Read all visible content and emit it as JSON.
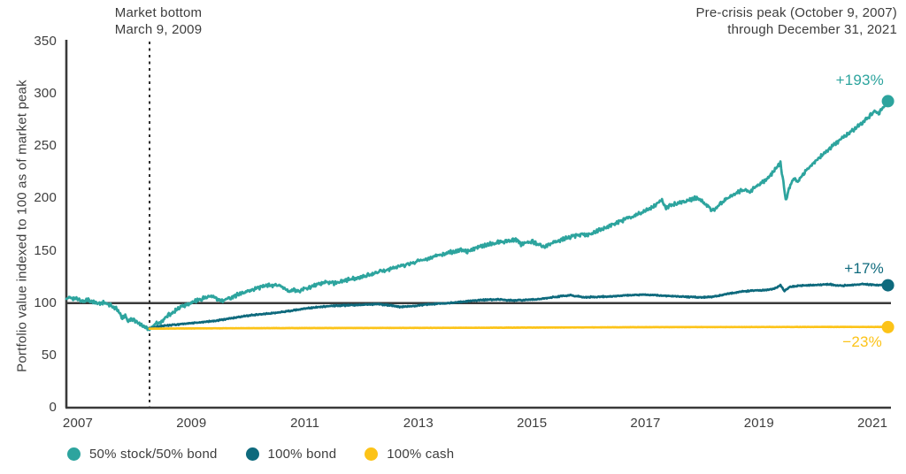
{
  "header": {
    "line1": "Pre-crisis peak (October 9, 2007)",
    "line2": "through December 31, 2021"
  },
  "annotation": {
    "line1": "Market bottom",
    "line2": "March 9, 2009",
    "marker_date_decimal": 2009.22
  },
  "axes": {
    "y_title": "Portfolio value indexed to 100 as of market peak",
    "y_ticks": [
      0,
      50,
      100,
      150,
      200,
      250,
      300,
      350
    ],
    "x_tick_labels": [
      "2007",
      "2009",
      "2011",
      "2013",
      "2015",
      "2017",
      "2019",
      "2021"
    ],
    "reference_line_value": 100
  },
  "legend": {
    "items": [
      {
        "label": "50% stock/50% bond",
        "color": "#2da49e"
      },
      {
        "label": "100% bond",
        "color": "#0e6a7d"
      },
      {
        "label": "100% cash",
        "color": "#fcc318"
      }
    ]
  },
  "colors": {
    "axis": "#3a3a3a",
    "text": "#3d3d3d",
    "reference_line": "#3a3a3a",
    "marker_line": "#2b2b2b"
  },
  "chart_data": {
    "type": "line",
    "title": "Pre-crisis peak (October 9, 2007) through December 31, 2021",
    "xlabel": "",
    "ylabel": "Portfolio value indexed to 100 as of market peak",
    "x_range_decimal_years": [
      2007.78,
      2022.0
    ],
    "ylim": [
      0,
      350
    ],
    "grid": false,
    "legend_position": "bottom",
    "annotations": [
      {
        "text": "Market bottom March 9, 2009",
        "x": 2009.22,
        "style": "dashed-vertical-line"
      },
      {
        "text": "Pre-crisis peak (October 9, 2007) through December 31, 2021",
        "position": "top-right"
      }
    ],
    "series": [
      {
        "name": "50% stock/50% bond",
        "color": "#2da49e",
        "end_label": "+193%",
        "end_value": 293,
        "jitter": 1.6,
        "points": [
          [
            2007.78,
            104
          ],
          [
            2007.84,
            105.5
          ],
          [
            2007.92,
            104.5
          ],
          [
            2008.0,
            103
          ],
          [
            2008.08,
            101.5
          ],
          [
            2008.16,
            103.5
          ],
          [
            2008.24,
            101
          ],
          [
            2008.33,
            99.5
          ],
          [
            2008.42,
            100.5
          ],
          [
            2008.5,
            98.5
          ],
          [
            2008.58,
            97
          ],
          [
            2008.64,
            95
          ],
          [
            2008.7,
            90
          ],
          [
            2008.75,
            85.5
          ],
          [
            2008.8,
            88
          ],
          [
            2008.85,
            82.5
          ],
          [
            2008.9,
            85.5
          ],
          [
            2008.96,
            83.5
          ],
          [
            2009.02,
            81
          ],
          [
            2009.08,
            79
          ],
          [
            2009.14,
            77
          ],
          [
            2009.22,
            75.5
          ],
          [
            2009.28,
            78
          ],
          [
            2009.33,
            81
          ],
          [
            2009.38,
            80
          ],
          [
            2009.45,
            84
          ],
          [
            2009.53,
            87.5
          ],
          [
            2009.6,
            90.5
          ],
          [
            2009.68,
            93.5
          ],
          [
            2009.76,
            96
          ],
          [
            2009.84,
            98
          ],
          [
            2009.92,
            99.5
          ],
          [
            2010.0,
            101.5
          ],
          [
            2010.1,
            103.5
          ],
          [
            2010.2,
            105.5
          ],
          [
            2010.3,
            106.5
          ],
          [
            2010.4,
            103.5
          ],
          [
            2010.5,
            102.5
          ],
          [
            2010.6,
            105
          ],
          [
            2010.7,
            107
          ],
          [
            2010.8,
            109
          ],
          [
            2010.9,
            111
          ],
          [
            2011.0,
            113
          ],
          [
            2011.1,
            114.5
          ],
          [
            2011.2,
            116
          ],
          [
            2011.3,
            117
          ],
          [
            2011.4,
            117.5
          ],
          [
            2011.5,
            116
          ],
          [
            2011.58,
            113
          ],
          [
            2011.65,
            110.5
          ],
          [
            2011.72,
            113
          ],
          [
            2011.8,
            111
          ],
          [
            2011.9,
            113.5
          ],
          [
            2012.0,
            115.5
          ],
          [
            2012.1,
            117.5
          ],
          [
            2012.2,
            119
          ],
          [
            2012.3,
            120
          ],
          [
            2012.4,
            119
          ],
          [
            2012.5,
            120.5
          ],
          [
            2012.6,
            121.5
          ],
          [
            2012.72,
            123
          ],
          [
            2012.85,
            124
          ],
          [
            2013.0,
            126.5
          ],
          [
            2013.15,
            129
          ],
          [
            2013.3,
            131.5
          ],
          [
            2013.45,
            133.5
          ],
          [
            2013.6,
            136
          ],
          [
            2013.75,
            138
          ],
          [
            2013.9,
            140.5
          ],
          [
            2014.05,
            143
          ],
          [
            2014.2,
            145.5
          ],
          [
            2014.35,
            147.5
          ],
          [
            2014.5,
            149.5
          ],
          [
            2014.62,
            151
          ],
          [
            2014.72,
            149.5
          ],
          [
            2014.85,
            152.5
          ],
          [
            2015.0,
            155
          ],
          [
            2015.15,
            157
          ],
          [
            2015.3,
            158.5
          ],
          [
            2015.45,
            160
          ],
          [
            2015.58,
            160.5
          ],
          [
            2015.65,
            155.5
          ],
          [
            2015.72,
            157.5
          ],
          [
            2015.85,
            159
          ],
          [
            2015.95,
            156
          ],
          [
            2016.05,
            153.5
          ],
          [
            2016.15,
            157
          ],
          [
            2016.3,
            160
          ],
          [
            2016.45,
            162.5
          ],
          [
            2016.6,
            164.5
          ],
          [
            2016.72,
            166
          ],
          [
            2016.82,
            165
          ],
          [
            2016.95,
            168.5
          ],
          [
            2017.1,
            172
          ],
          [
            2017.25,
            175.5
          ],
          [
            2017.4,
            179
          ],
          [
            2017.55,
            182
          ],
          [
            2017.7,
            185.5
          ],
          [
            2017.85,
            189.5
          ],
          [
            2018.0,
            194.5
          ],
          [
            2018.09,
            198
          ],
          [
            2018.16,
            191
          ],
          [
            2018.25,
            193.5
          ],
          [
            2018.4,
            196
          ],
          [
            2018.55,
            198.5
          ],
          [
            2018.68,
            200.5
          ],
          [
            2018.78,
            198
          ],
          [
            2018.88,
            193
          ],
          [
            2018.96,
            187.5
          ],
          [
            2019.05,
            193
          ],
          [
            2019.2,
            199.5
          ],
          [
            2019.35,
            204.5
          ],
          [
            2019.5,
            208.5
          ],
          [
            2019.6,
            206.5
          ],
          [
            2019.75,
            212.5
          ],
          [
            2019.9,
            218.5
          ],
          [
            2020.0,
            224.5
          ],
          [
            2020.08,
            230
          ],
          [
            2020.14,
            234.5
          ],
          [
            2020.19,
            215
          ],
          [
            2020.23,
            198
          ],
          [
            2020.3,
            211.5
          ],
          [
            2020.38,
            219
          ],
          [
            2020.44,
            215.5
          ],
          [
            2020.52,
            222
          ],
          [
            2020.62,
            228.5
          ],
          [
            2020.72,
            234
          ],
          [
            2020.82,
            239
          ],
          [
            2020.92,
            244.5
          ],
          [
            2021.02,
            249
          ],
          [
            2021.12,
            253.5
          ],
          [
            2021.22,
            257.5
          ],
          [
            2021.32,
            262
          ],
          [
            2021.42,
            266.5
          ],
          [
            2021.52,
            270.5
          ],
          [
            2021.62,
            275.5
          ],
          [
            2021.7,
            279.5
          ],
          [
            2021.78,
            283.5
          ],
          [
            2021.84,
            280.5
          ],
          [
            2021.9,
            286
          ],
          [
            2022.0,
            293
          ]
        ]
      },
      {
        "name": "100% bond",
        "color": "#0e6a7d",
        "end_label": "+17%",
        "end_value": 117,
        "jitter": 0.5,
        "points": [
          [
            2009.22,
            75.5
          ],
          [
            2009.35,
            77.5
          ],
          [
            2009.5,
            78.5
          ],
          [
            2009.7,
            79.5
          ],
          [
            2009.9,
            80.5
          ],
          [
            2010.1,
            81.5
          ],
          [
            2010.35,
            83
          ],
          [
            2010.6,
            85
          ],
          [
            2010.8,
            87
          ],
          [
            2011.0,
            88.5
          ],
          [
            2011.2,
            89.5
          ],
          [
            2011.45,
            91
          ],
          [
            2011.7,
            93
          ],
          [
            2011.95,
            95
          ],
          [
            2012.2,
            96.5
          ],
          [
            2012.45,
            97.5
          ],
          [
            2012.7,
            98
          ],
          [
            2012.95,
            98.5
          ],
          [
            2013.15,
            99
          ],
          [
            2013.35,
            98
          ],
          [
            2013.55,
            96.5
          ],
          [
            2013.75,
            97
          ],
          [
            2014.0,
            98.5
          ],
          [
            2014.25,
            99.5
          ],
          [
            2014.5,
            100.5
          ],
          [
            2014.75,
            102
          ],
          [
            2015.0,
            103
          ],
          [
            2015.25,
            103.5
          ],
          [
            2015.5,
            102.5
          ],
          [
            2015.75,
            103
          ],
          [
            2016.0,
            104
          ],
          [
            2016.25,
            106
          ],
          [
            2016.5,
            107.5
          ],
          [
            2016.75,
            105.5
          ],
          [
            2017.0,
            106
          ],
          [
            2017.25,
            106.5
          ],
          [
            2017.5,
            107.5
          ],
          [
            2017.75,
            108
          ],
          [
            2018.0,
            107.5
          ],
          [
            2018.25,
            106.5
          ],
          [
            2018.5,
            106
          ],
          [
            2018.75,
            105.5
          ],
          [
            2018.95,
            106
          ],
          [
            2019.15,
            108
          ],
          [
            2019.4,
            110.5
          ],
          [
            2019.65,
            112
          ],
          [
            2019.9,
            112.5
          ],
          [
            2020.05,
            114
          ],
          [
            2020.14,
            117
          ],
          [
            2020.21,
            111.5
          ],
          [
            2020.3,
            115.5
          ],
          [
            2020.45,
            116.5
          ],
          [
            2020.6,
            117
          ],
          [
            2020.8,
            117.5
          ],
          [
            2021.0,
            118
          ],
          [
            2021.15,
            116.5
          ],
          [
            2021.35,
            117
          ],
          [
            2021.55,
            118
          ],
          [
            2021.75,
            117.5
          ],
          [
            2021.9,
            117.2
          ],
          [
            2022.0,
            117
          ]
        ]
      },
      {
        "name": "100% cash",
        "color": "#fcc318",
        "end_label": "−23%",
        "end_value": 77,
        "jitter": 0.08,
        "points": [
          [
            2009.22,
            75.5
          ],
          [
            2010.0,
            75.8
          ],
          [
            2011.0,
            76
          ],
          [
            2012.0,
            76.1
          ],
          [
            2013.0,
            76.2
          ],
          [
            2014.0,
            76.3
          ],
          [
            2015.0,
            76.4
          ],
          [
            2016.0,
            76.6
          ],
          [
            2017.0,
            76.8
          ],
          [
            2018.0,
            77
          ],
          [
            2019.0,
            77.1
          ],
          [
            2020.0,
            77.15
          ],
          [
            2021.0,
            77.2
          ],
          [
            2022.0,
            77.2
          ]
        ]
      }
    ]
  }
}
